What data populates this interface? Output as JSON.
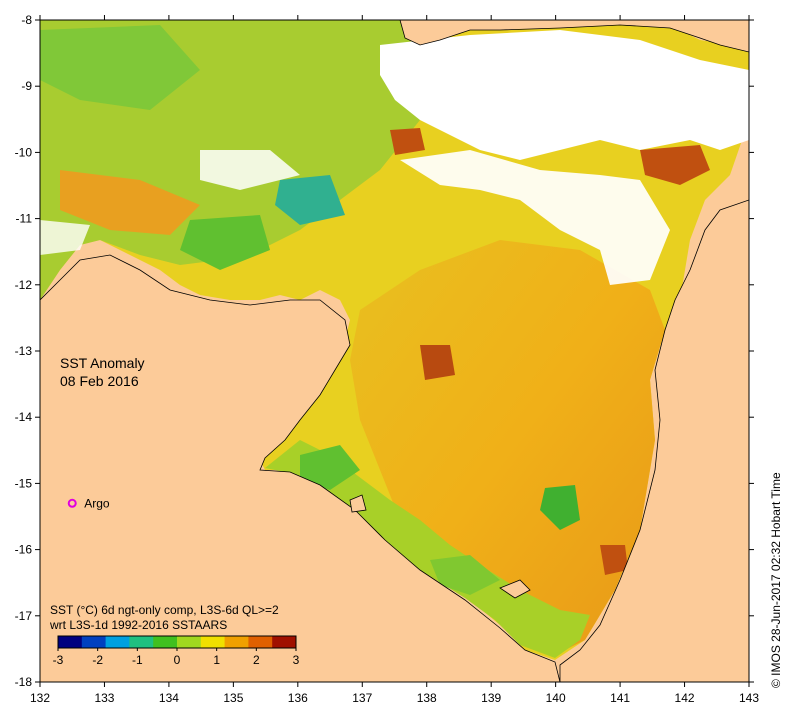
{
  "title": {
    "line1": "SST Anomaly",
    "line2": "08 Feb 2016"
  },
  "credit": "©  IMOS 28-Jun-2017 02:32 Hobart Time",
  "marker": {
    "label": "Argo",
    "lon": 132.5,
    "lat": -15.3,
    "color": "#e000e0"
  },
  "axes": {
    "x_ticks": [
      "132",
      "133",
      "134",
      "135",
      "136",
      "137",
      "138",
      "139",
      "140",
      "141",
      "142",
      "143"
    ],
    "y_ticks": [
      "-8",
      "-9",
      "-10",
      "-11",
      "-12",
      "-13",
      "-14",
      "-15",
      "-16",
      "-17",
      "-18"
    ],
    "lon_range": [
      132,
      143
    ],
    "lat_range": [
      -18,
      -8
    ]
  },
  "legend": {
    "line1": "SST (°C) 6d ngt-only comp, L3S-6d QL>=2",
    "line2": "wrt L3S-1d 1992-2016 SSTAARS",
    "ticks": [
      "-3",
      "-2",
      "-1",
      "0",
      "1",
      "2",
      "3"
    ],
    "range": [
      -3,
      3
    ],
    "colors": [
      "#000080",
      "#0040c0",
      "#00a0e0",
      "#20c080",
      "#40c020",
      "#a0d820",
      "#f0e000",
      "#f0a000",
      "#e06000",
      "#a01000"
    ]
  },
  "colors": {
    "land": "#fccb99",
    "nodata": "#ffffff",
    "sea_warm": "#f0b018",
    "sea_mild": "#e8d020",
    "sea_cool": "#70c830",
    "sea_hot": "#c05010",
    "coast": "#000000"
  }
}
